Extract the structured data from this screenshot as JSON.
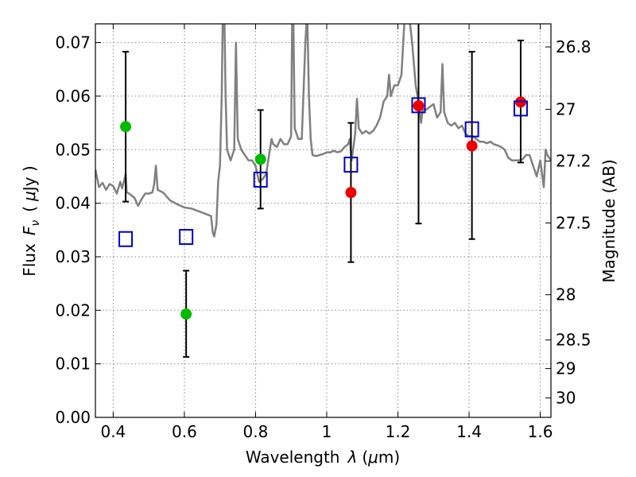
{
  "chart_data": {
    "type": "scatter",
    "xlabel": "Wavelength",
    "xlabel_symbol": "λ",
    "xlabel_unit_open": "(",
    "xlabel_unit_mu": "μ",
    "xlabel_unit_rest": "m)",
    "ylabel": "Flux",
    "ylabel_symbol": "F",
    "ylabel_symbol_sub": "ν",
    "ylabel_unit_open": "(",
    "ylabel_unit_mu": "μ",
    "ylabel_unit_rest": "Jy )",
    "y2label": "Magnitude (AB)",
    "xlim": [
      0.35,
      1.63
    ],
    "ylim": [
      0.0,
      0.0735
    ],
    "xticks": [
      {
        "value": 0.4,
        "label": "0.4"
      },
      {
        "value": 0.6,
        "label": "0.6"
      },
      {
        "value": 0.8,
        "label": "0.8"
      },
      {
        "value": 1.0,
        "label": "1"
      },
      {
        "value": 1.2,
        "label": "1.2"
      },
      {
        "value": 1.4,
        "label": "1.4"
      },
      {
        "value": 1.6,
        "label": "1.6"
      }
    ],
    "yticks": [
      {
        "value": 0.0,
        "label": "0.00"
      },
      {
        "value": 0.01,
        "label": "0.01"
      },
      {
        "value": 0.02,
        "label": "0.02"
      },
      {
        "value": 0.03,
        "label": "0.03"
      },
      {
        "value": 0.04,
        "label": "0.04"
      },
      {
        "value": 0.05,
        "label": "0.05"
      },
      {
        "value": 0.06,
        "label": "0.06"
      },
      {
        "value": 0.07,
        "label": "0.07"
      }
    ],
    "y2ticks": [
      {
        "value": 26.8,
        "label": "26.8"
      },
      {
        "value": 27.0,
        "label": "27"
      },
      {
        "value": 27.2,
        "label": "27.2"
      },
      {
        "value": 27.5,
        "label": "27.5"
      },
      {
        "value": 28.0,
        "label": "28"
      },
      {
        "value": 28.5,
        "label": "28.5"
      },
      {
        "value": 29.0,
        "label": "29"
      },
      {
        "value": 30.0,
        "label": "30"
      }
    ],
    "grid": true,
    "colors": {
      "spectrum": "#808080",
      "green": "#00bb00",
      "red": "#ee0000",
      "model_box": "#0000cc",
      "errorbar": "#000000",
      "grid": "#8a8a8a"
    },
    "spectrum": [
      [
        0.35,
        0.0463
      ],
      [
        0.36,
        0.043
      ],
      [
        0.37,
        0.0438
      ],
      [
        0.38,
        0.0425
      ],
      [
        0.39,
        0.0436
      ],
      [
        0.4,
        0.0432
      ],
      [
        0.41,
        0.0418
      ],
      [
        0.42,
        0.044
      ],
      [
        0.425,
        0.0428
      ],
      [
        0.43,
        0.044
      ],
      [
        0.435,
        0.0455
      ],
      [
        0.438,
        0.042
      ],
      [
        0.445,
        0.0418
      ],
      [
        0.46,
        0.041
      ],
      [
        0.47,
        0.0395
      ],
      [
        0.48,
        0.0408
      ],
      [
        0.49,
        0.0418
      ],
      [
        0.5,
        0.0418
      ],
      [
        0.51,
        0.042
      ],
      [
        0.515,
        0.0435
      ],
      [
        0.52,
        0.047
      ],
      [
        0.525,
        0.0425
      ],
      [
        0.54,
        0.042
      ],
      [
        0.56,
        0.0405
      ],
      [
        0.58,
        0.0398
      ],
      [
        0.6,
        0.0392
      ],
      [
        0.62,
        0.039
      ],
      [
        0.64,
        0.0385
      ],
      [
        0.66,
        0.038
      ],
      [
        0.675,
        0.0376
      ],
      [
        0.68,
        0.0345
      ],
      [
        0.684,
        0.0338
      ],
      [
        0.69,
        0.036
      ],
      [
        0.695,
        0.044
      ],
      [
        0.7,
        0.047
      ],
      [
        0.705,
        0.06
      ],
      [
        0.708,
        0.076
      ],
      [
        0.712,
        0.076
      ],
      [
        0.716,
        0.06
      ],
      [
        0.72,
        0.05
      ],
      [
        0.73,
        0.048
      ],
      [
        0.74,
        0.05
      ],
      [
        0.745,
        0.07
      ],
      [
        0.75,
        0.052
      ],
      [
        0.76,
        0.05
      ],
      [
        0.77,
        0.049
      ],
      [
        0.78,
        0.048
      ],
      [
        0.79,
        0.048
      ],
      [
        0.8,
        0.047
      ],
      [
        0.81,
        0.044
      ],
      [
        0.82,
        0.0445
      ],
      [
        0.83,
        0.0455
      ],
      [
        0.84,
        0.05
      ],
      [
        0.845,
        0.052
      ],
      [
        0.85,
        0.051
      ],
      [
        0.86,
        0.0505
      ],
      [
        0.87,
        0.052
      ],
      [
        0.88,
        0.051
      ],
      [
        0.89,
        0.051
      ],
      [
        0.9,
        0.0525
      ],
      [
        0.903,
        0.076
      ],
      [
        0.906,
        0.076
      ],
      [
        0.91,
        0.054
      ],
      [
        0.92,
        0.052
      ],
      [
        0.93,
        0.052
      ],
      [
        0.94,
        0.07
      ],
      [
        0.945,
        0.076
      ],
      [
        0.95,
        0.06
      ],
      [
        0.955,
        0.052
      ],
      [
        0.96,
        0.049
      ],
      [
        0.97,
        0.0488
      ],
      [
        0.98,
        0.049
      ],
      [
        0.99,
        0.0492
      ],
      [
        1.0,
        0.0495
      ],
      [
        1.01,
        0.0495
      ],
      [
        1.02,
        0.0498
      ],
      [
        1.03,
        0.0495
      ],
      [
        1.04,
        0.0497
      ],
      [
        1.05,
        0.0505
      ],
      [
        1.06,
        0.051
      ],
      [
        1.065,
        0.052
      ],
      [
        1.07,
        0.048
      ],
      [
        1.08,
        0.053
      ],
      [
        1.085,
        0.0595
      ],
      [
        1.09,
        0.054
      ],
      [
        1.1,
        0.053
      ],
      [
        1.11,
        0.0535
      ],
      [
        1.12,
        0.053
      ],
      [
        1.13,
        0.0535
      ],
      [
        1.14,
        0.0545
      ],
      [
        1.15,
        0.056
      ],
      [
        1.16,
        0.059
      ],
      [
        1.17,
        0.06
      ],
      [
        1.175,
        0.064
      ],
      [
        1.18,
        0.06
      ],
      [
        1.19,
        0.062
      ],
      [
        1.2,
        0.062
      ],
      [
        1.21,
        0.064
      ],
      [
        1.215,
        0.07
      ],
      [
        1.22,
        0.076
      ],
      [
        1.23,
        0.076
      ],
      [
        1.24,
        0.07
      ],
      [
        1.25,
        0.062
      ],
      [
        1.26,
        0.058
      ],
      [
        1.265,
        0.055
      ],
      [
        1.27,
        0.0575
      ],
      [
        1.28,
        0.0575
      ],
      [
        1.29,
        0.058
      ],
      [
        1.3,
        0.0585
      ],
      [
        1.31,
        0.056
      ],
      [
        1.32,
        0.057
      ],
      [
        1.325,
        0.066
      ],
      [
        1.33,
        0.057
      ],
      [
        1.34,
        0.055
      ],
      [
        1.35,
        0.0545
      ],
      [
        1.36,
        0.055
      ],
      [
        1.37,
        0.054
      ],
      [
        1.38,
        0.0545
      ],
      [
        1.39,
        0.053
      ],
      [
        1.4,
        0.0525
      ],
      [
        1.41,
        0.0525
      ],
      [
        1.42,
        0.052
      ],
      [
        1.43,
        0.0515
      ],
      [
        1.44,
        0.0515
      ],
      [
        1.45,
        0.0512
      ],
      [
        1.46,
        0.0515
      ],
      [
        1.47,
        0.051
      ],
      [
        1.48,
        0.0508
      ],
      [
        1.49,
        0.0505
      ],
      [
        1.5,
        0.05
      ],
      [
        1.51,
        0.0485
      ],
      [
        1.52,
        0.048
      ],
      [
        1.53,
        0.048
      ],
      [
        1.54,
        0.048
      ],
      [
        1.55,
        0.0482
      ],
      [
        1.56,
        0.049
      ],
      [
        1.57,
        0.049
      ],
      [
        1.58,
        0.047
      ],
      [
        1.59,
        0.045
      ],
      [
        1.6,
        0.048
      ],
      [
        1.61,
        0.043
      ],
      [
        1.615,
        0.05
      ],
      [
        1.62,
        0.049
      ],
      [
        1.63,
        0.048
      ]
    ],
    "green_points": [
      {
        "x": 0.435,
        "y": 0.0543,
        "ylo": 0.0403,
        "yhi": 0.0683
      },
      {
        "x": 0.605,
        "y": 0.0193,
        "ylo": 0.0113,
        "yhi": 0.0274
      },
      {
        "x": 0.814,
        "y": 0.0482,
        "ylo": 0.039,
        "yhi": 0.0574
      }
    ],
    "red_points": [
      {
        "x": 1.068,
        "y": 0.042,
        "ylo": 0.029,
        "yhi": 0.055
      },
      {
        "x": 1.258,
        "y": 0.0582,
        "ylo": 0.0362,
        "yhi": 0.076
      },
      {
        "x": 1.408,
        "y": 0.0507,
        "ylo": 0.0333,
        "yhi": 0.0683
      },
      {
        "x": 1.545,
        "y": 0.0589,
        "ylo": 0.0476,
        "yhi": 0.0704
      }
    ],
    "model_boxes": [
      {
        "x": 0.435,
        "y": 0.0333
      },
      {
        "x": 0.605,
        "y": 0.0337
      },
      {
        "x": 0.814,
        "y": 0.0444
      },
      {
        "x": 1.068,
        "y": 0.0472
      },
      {
        "x": 1.258,
        "y": 0.0583
      },
      {
        "x": 1.408,
        "y": 0.0538
      },
      {
        "x": 1.545,
        "y": 0.0577
      }
    ]
  }
}
